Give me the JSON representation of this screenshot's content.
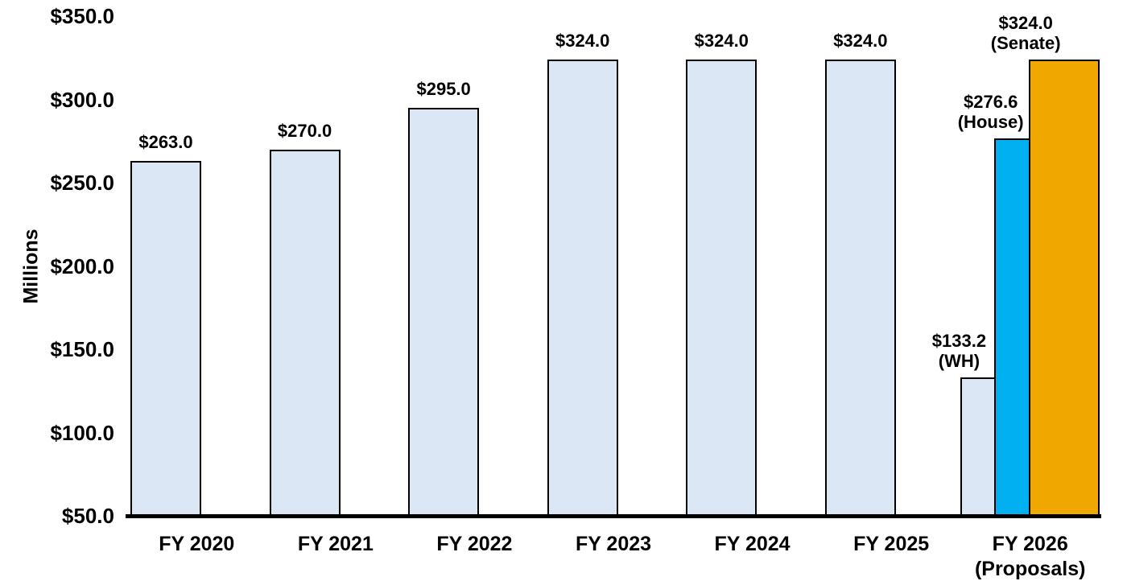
{
  "chart_data": {
    "type": "bar",
    "title": "",
    "xlabel": "",
    "ylabel": "Millions",
    "grid": false,
    "legend": false,
    "y_axis": {
      "min": 50,
      "max": 350,
      "tick_interval": 50,
      "ticks": [
        {
          "value": 350,
          "label": "$350.0"
        },
        {
          "value": 300,
          "label": "$300.0"
        },
        {
          "value": 250,
          "label": "$250.0"
        },
        {
          "value": 200,
          "label": "$200.0"
        },
        {
          "value": 150,
          "label": "$150.0"
        },
        {
          "value": 100,
          "label": "$100.0"
        },
        {
          "value": 50,
          "label": "$50.0"
        }
      ]
    },
    "palette": {
      "light_blue": "#DBE7F4",
      "blue": "#00B0F0",
      "orange": "#EEA800",
      "bar_border": "#000000",
      "text": "#000000",
      "background": "#FFFFFF"
    },
    "categories": [
      {
        "label": "FY 2020",
        "bars": [
          {
            "value": 263.0,
            "data_label": "$263.0",
            "color": "light_blue"
          }
        ]
      },
      {
        "label": "FY 2021",
        "bars": [
          {
            "value": 270.0,
            "data_label": "$270.0",
            "color": "light_blue"
          }
        ]
      },
      {
        "label": "FY 2022",
        "bars": [
          {
            "value": 295.0,
            "data_label": "$295.0",
            "color": "light_blue"
          }
        ]
      },
      {
        "label": "FY 2023",
        "bars": [
          {
            "value": 324.0,
            "data_label": "$324.0",
            "color": "light_blue"
          }
        ]
      },
      {
        "label": "FY 2024",
        "bars": [
          {
            "value": 324.0,
            "data_label": "$324.0",
            "color": "light_blue"
          }
        ]
      },
      {
        "label": "FY 2025",
        "bars": [
          {
            "value": 324.0,
            "data_label": "$324.0",
            "color": "light_blue"
          }
        ]
      },
      {
        "label": "FY 2026",
        "label_line2": "(Proposals)",
        "bars": [
          {
            "value": 133.2,
            "data_label": "$133.2",
            "data_label_line2": "(WH)",
            "color": "light_blue"
          },
          {
            "value": 276.6,
            "data_label": "$276.6",
            "data_label_line2": "(House)",
            "color": "blue"
          },
          {
            "value": 324.0,
            "data_label": "$324.0",
            "data_label_line2": "(Senate)",
            "color": "orange"
          }
        ]
      }
    ]
  }
}
